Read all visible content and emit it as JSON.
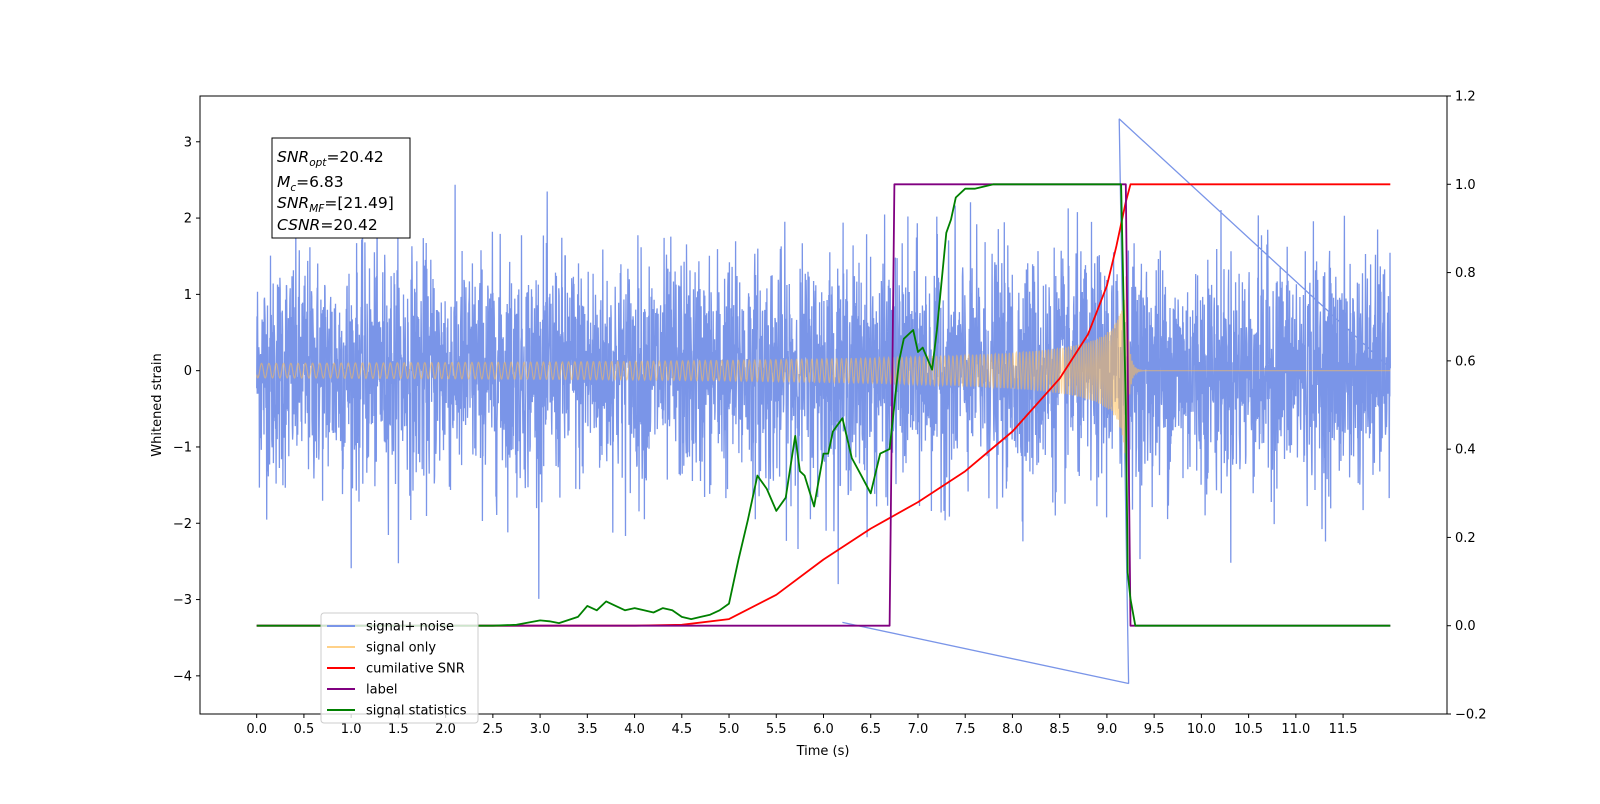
{
  "chart_data": {
    "type": "line",
    "xlabel": "Time (s)",
    "ylabel": "Whitened strain",
    "xlim": [
      -0.6,
      12.6
    ],
    "ylim": [
      -4.5,
      3.6
    ],
    "ylim_right": [
      -0.2,
      1.2
    ],
    "x_ticks": [
      "0.0",
      "0.5",
      "1.0",
      "1.5",
      "2.0",
      "2.5",
      "3.0",
      "3.5",
      "4.0",
      "4.5",
      "5.0",
      "5.5",
      "6.0",
      "6.5",
      "7.0",
      "7.5",
      "8.0",
      "8.5",
      "9.0",
      "9.5",
      "10.0",
      "10.5",
      "11.0",
      "11.5"
    ],
    "y_ticks": [
      "3",
      "2",
      "1",
      "0",
      "−1",
      "−2",
      "−3",
      "−4"
    ],
    "y_ticks_right": [
      "1.2",
      "1.0",
      "0.8",
      "0.6",
      "0.4",
      "0.2",
      "0.0",
      "−0.2"
    ],
    "grid": false,
    "legend_position": "lower-left",
    "annotation": {
      "lines": [
        {
          "main": "SNR",
          "sub": "opt",
          "rest": "=20.42"
        },
        {
          "main": "M",
          "sub": "c",
          "rest": "=6.83"
        },
        {
          "main": "SNR",
          "sub": "MF",
          "rest": "=[21.49]"
        },
        {
          "main": "CSNR",
          "sub": "",
          "rest": "=20.42"
        }
      ]
    },
    "series": [
      {
        "name": "signal+ noise",
        "color": "#7a95e8",
        "axis": "left",
        "style": "noise",
        "x_range": [
          0.0,
          12.0
        ],
        "typical_amplitude": 1.2,
        "max_observed": 3.3,
        "min_observed": -4.1
      },
      {
        "name": "signal only",
        "color": "#ffbe55",
        "axis": "left",
        "style": "chirp",
        "x_range": [
          0.0,
          12.0
        ],
        "merger_time": 9.2,
        "peak_amplitude": 1.25
      },
      {
        "name": "cumilative SNR",
        "color": "#ff0000",
        "axis": "right",
        "x": [
          0.0,
          4.0,
          4.5,
          5.0,
          5.5,
          6.0,
          6.5,
          7.0,
          7.5,
          8.0,
          8.5,
          8.8,
          9.0,
          9.1,
          9.2,
          9.25,
          11.0,
          12.0
        ],
        "y": [
          0.0,
          0.0,
          0.002,
          0.015,
          0.07,
          0.15,
          0.22,
          0.28,
          0.35,
          0.44,
          0.56,
          0.66,
          0.77,
          0.86,
          0.96,
          1.0,
          1.0,
          1.0
        ]
      },
      {
        "name": "label",
        "color": "#800080",
        "axis": "right",
        "x": [
          0.0,
          6.7,
          6.75,
          9.2,
          9.25,
          12.0
        ],
        "y": [
          0.0,
          0.0,
          1.0,
          1.0,
          0.0,
          0.0
        ]
      },
      {
        "name": "signal statistics",
        "color": "#008000",
        "axis": "right",
        "x": [
          0.0,
          2.5,
          2.75,
          3.0,
          3.1,
          3.2,
          3.4,
          3.5,
          3.6,
          3.7,
          3.8,
          3.9,
          4.0,
          4.1,
          4.2,
          4.3,
          4.4,
          4.5,
          4.6,
          4.7,
          4.8,
          4.9,
          5.0,
          5.1,
          5.2,
          5.3,
          5.4,
          5.5,
          5.6,
          5.7,
          5.75,
          5.8,
          5.9,
          6.0,
          6.05,
          6.1,
          6.2,
          6.3,
          6.4,
          6.5,
          6.6,
          6.7,
          6.8,
          6.85,
          6.9,
          6.95,
          7.0,
          7.05,
          7.15,
          7.2,
          7.3,
          7.35,
          7.4,
          7.5,
          7.6,
          7.8,
          8.0,
          9.0,
          9.15,
          9.2,
          9.22,
          9.25,
          9.3,
          12.0
        ],
        "y": [
          0.0,
          0.0,
          0.002,
          0.012,
          0.01,
          0.006,
          0.02,
          0.045,
          0.035,
          0.055,
          0.045,
          0.035,
          0.04,
          0.035,
          0.03,
          0.04,
          0.035,
          0.02,
          0.015,
          0.02,
          0.025,
          0.035,
          0.05,
          0.15,
          0.24,
          0.34,
          0.31,
          0.26,
          0.29,
          0.43,
          0.35,
          0.34,
          0.27,
          0.39,
          0.39,
          0.44,
          0.47,
          0.38,
          0.34,
          0.3,
          0.39,
          0.4,
          0.6,
          0.65,
          0.66,
          0.67,
          0.62,
          0.63,
          0.58,
          0.67,
          0.89,
          0.92,
          0.97,
          0.99,
          0.99,
          1.0,
          1.0,
          1.0,
          1.0,
          0.5,
          0.12,
          0.06,
          0.0,
          0.0
        ]
      }
    ]
  }
}
